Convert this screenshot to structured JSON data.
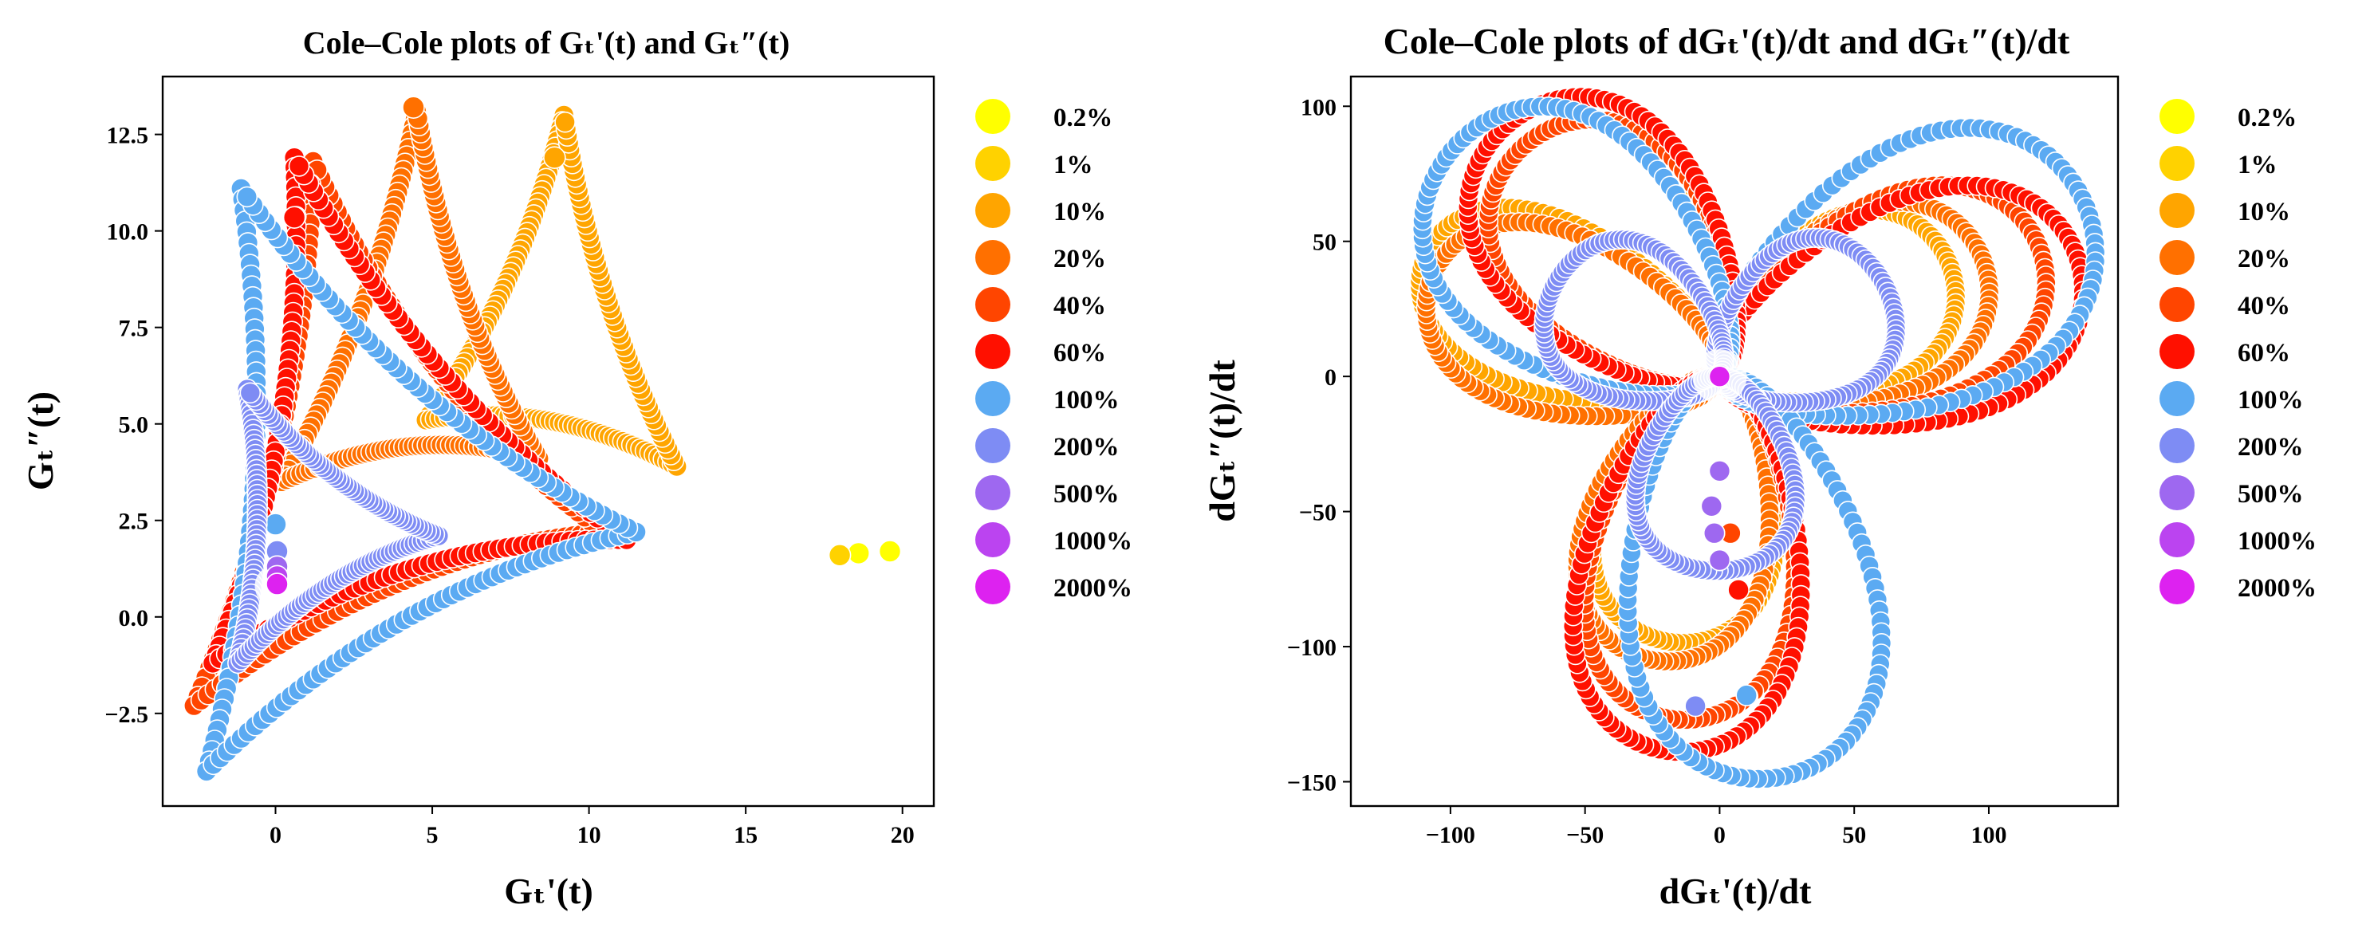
{
  "figure": {
    "legend": {
      "entries": [
        {
          "label": "0.2%",
          "color": "#FFFF00"
        },
        {
          "label": "1%",
          "color": "#FFD200"
        },
        {
          "label": "10%",
          "color": "#FFA500"
        },
        {
          "label": "20%",
          "color": "#FF7000"
        },
        {
          "label": "40%",
          "color": "#FF4500"
        },
        {
          "label": "60%",
          "color": "#FF1000"
        },
        {
          "label": "100%",
          "color": "#5BAAF2"
        },
        {
          "label": "200%",
          "color": "#7E8CF4"
        },
        {
          "label": "500%",
          "color": "#9E68F0"
        },
        {
          "label": "1000%",
          "color": "#BB44F0"
        },
        {
          "label": "2000%",
          "color": "#DD22F0"
        }
      ]
    }
  },
  "chart_data": [
    {
      "type": "scatter",
      "title": "Cole–Cole plots of Gₜ'(t) and Gₜ″(t)",
      "xlabel": "Gₜ'(t)",
      "ylabel": "Gₜ″(t)",
      "xlim": [
        -3.6,
        21.0
      ],
      "ylim": [
        -4.9,
        14.0
      ],
      "xticks": [
        0,
        5,
        10,
        15,
        20
      ],
      "xtick_labels": [
        "0",
        "5",
        "10",
        "15",
        "20"
      ],
      "yticks": [
        -2.5,
        0.0,
        2.5,
        5.0,
        7.5,
        10.0,
        12.5
      ],
      "ytick_labels": [
        "−2.5",
        "0.0",
        "2.5",
        "5.0",
        "7.5",
        "10.0",
        "12.5"
      ],
      "series": [
        {
          "name": "0.2%",
          "points": [
            [
              18.6,
              1.65
            ],
            [
              19.6,
              1.7
            ]
          ]
        },
        {
          "name": "1%",
          "points": [
            [
              18.0,
              1.6
            ]
          ]
        },
        {
          "name": "10%",
          "triangle": [
            [
              9.2,
              13.0
            ],
            [
              4.8,
              5.1
            ],
            [
              12.8,
              3.9
            ]
          ],
          "bulge": 0.2,
          "highlight": [
            8.9,
            11.9
          ]
        },
        {
          "name": "20%",
          "triangle": [
            [
              4.5,
              13.1
            ],
            [
              0.2,
              3.5
            ],
            [
              8.4,
              4.1
            ]
          ],
          "bulge": 0.2,
          "highlight": [
            4.4,
            13.2
          ]
        },
        {
          "name": "40%",
          "triangle": [
            [
              1.2,
              11.8
            ],
            [
              -2.6,
              -2.3
            ],
            [
              10.5,
              2.2
            ]
          ],
          "bulge": 0.22,
          "highlight": [
            1.1,
            11.2
          ]
        },
        {
          "name": "60%",
          "triangle": [
            [
              0.6,
              11.9
            ],
            [
              -2.0,
              -1.2
            ],
            [
              11.2,
              2.0
            ]
          ],
          "bulge": 0.22,
          "highlight": [
            0.6,
            10.35
          ]
        },
        {
          "name": "100%",
          "triangle": [
            [
              -1.1,
              11.1
            ],
            [
              -2.2,
              -4.0
            ],
            [
              11.5,
              2.2
            ]
          ],
          "bulge": 0.22,
          "highlight": [
            0.0,
            2.4
          ]
        },
        {
          "name": "200%",
          "triangle": [
            [
              -0.9,
              5.9
            ],
            [
              -1.2,
              -1.2
            ],
            [
              5.2,
              2.1
            ]
          ],
          "bulge": 0.22,
          "highlight": [
            0.05,
            1.7
          ]
        },
        {
          "name": "500%",
          "points": [
            [
              0.05,
              1.3
            ]
          ]
        },
        {
          "name": "1000%",
          "points": [
            [
              0.05,
              1.05
            ]
          ]
        },
        {
          "name": "2000%",
          "points": [
            [
              0.05,
              0.85
            ]
          ]
        }
      ]
    },
    {
      "type": "scatter",
      "title": "Cole–Cole plots of dGₜ'(t)/dt and dGₜ″(t)/dt",
      "xlabel": "dGₜ'(t)/dt",
      "ylabel": "dGₜ″(t)/dt",
      "xlim": [
        -137,
        148
      ],
      "ylim": [
        -159,
        111
      ],
      "xticks": [
        -100,
        -50,
        0,
        50,
        100
      ],
      "xtick_labels": [
        "−100",
        "−50",
        "0",
        "50",
        "100"
      ],
      "yticks": [
        -150,
        -100,
        -50,
        0,
        50,
        100
      ],
      "ytick_labels": [
        "−150",
        "−100",
        "−50",
        "0",
        "50",
        "100"
      ],
      "series": [
        {
          "name": "10%",
          "lobes": [
            [
              28,
              95,
              40,
              0.45
            ],
            [
              158,
              118,
              40,
              0.45
            ],
            [
              258,
              100,
              42,
              0.45
            ]
          ],
          "highlight": [
            -12,
            65
          ]
        },
        {
          "name": "20%",
          "lobes": [
            [
              25,
              107,
              43,
              0.45
            ],
            [
              162,
              113,
              42,
              0.45
            ],
            [
              255,
              108,
              43,
              0.45
            ]
          ],
          "highlight": [
            -3,
            53
          ]
        },
        {
          "name": "40%",
          "lobes": [
            [
              22,
              128,
              48,
              0.42
            ],
            [
              130,
              112,
              48,
              0.42
            ],
            [
              262,
              128,
              48,
              0.42
            ]
          ],
          "highlight": [
            4,
            -58
          ]
        },
        {
          "name": "60%",
          "lobes": [
            [
              18,
              140,
              52,
              0.4
            ],
            [
              130,
              122,
              52,
              0.4
            ],
            [
              262,
              140,
              52,
              0.4
            ]
          ],
          "highlight": [
            7,
            -79
          ]
        },
        {
          "name": "100%",
          "lobes": [
            [
              26,
              150,
              60,
              0.36
            ],
            [
              140,
              130,
              56,
              0.36
            ],
            [
              278,
              150,
              58,
              0.36
            ]
          ],
          "highlight": [
            10,
            -118
          ]
        },
        {
          "name": "200%",
          "lobes": [
            [
              30,
              70,
              37,
              0.36
            ],
            [
              150,
              70,
              36,
              0.36
            ],
            [
              268,
              72,
              37,
              0.36
            ]
          ],
          "highlight": [
            -9,
            -122
          ]
        },
        {
          "name": "500%",
          "points": [
            [
              0,
              -35
            ],
            [
              -3,
              -48
            ],
            [
              -2,
              -58
            ],
            [
              0,
              -68
            ]
          ]
        },
        {
          "name": "1000%",
          "points": [
            [
              0,
              0
            ]
          ]
        },
        {
          "name": "2000%",
          "points": [
            [
              0,
              0
            ]
          ]
        }
      ]
    }
  ]
}
